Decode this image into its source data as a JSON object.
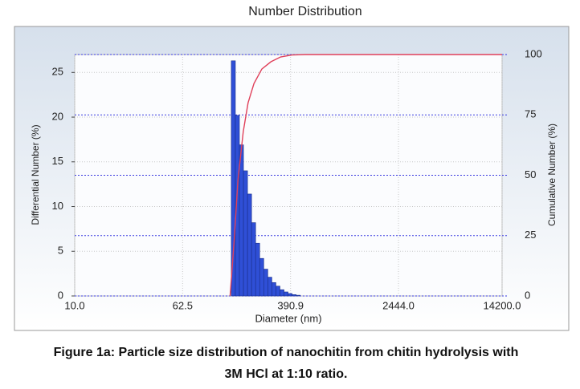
{
  "chart_data": {
    "type": "histogram",
    "title": "Number Distribution",
    "xlabel": "Diameter (nm)",
    "ylabel": "Differential Number (%)",
    "y2label": "Cumulative Number (%)",
    "xlog": true,
    "xlim": [
      10,
      14200
    ],
    "xticks": [
      {
        "value": 10,
        "label": "10.0"
      },
      {
        "value": 62.5,
        "label": "62.5"
      },
      {
        "value": 390.9,
        "label": "390.9"
      },
      {
        "value": 2444,
        "label": "2444.0"
      },
      {
        "value": 14200,
        "label": "14200.0"
      }
    ],
    "ylim": [
      0,
      27
    ],
    "yticks": [
      0,
      5,
      10,
      15,
      20,
      25
    ],
    "y2lim": [
      0,
      100
    ],
    "y2ticks": [
      0,
      25,
      50,
      75,
      100
    ],
    "grid": true,
    "color": "#2f4fd6",
    "bins": [
      142.9,
      153.1,
      164.0,
      175.7,
      188.2,
      201.6,
      216.0,
      231.4,
      247.9,
      265.6,
      284.5,
      304.8,
      326.5,
      349.8,
      374.7,
      401.4,
      430.1,
      460.7
    ],
    "values": [
      26.3,
      20.2,
      16.9,
      14,
      11.4,
      8.2,
      5.9,
      4.2,
      3,
      2.1,
      1.5,
      1.1,
      0.7,
      0.45,
      0.27,
      0.15,
      0.08
    ],
    "cumulative": {
      "type": "line",
      "axis": "y2",
      "color": "#e0405a",
      "x": [
        140,
        150,
        160,
        175,
        190,
        210,
        240,
        280,
        330,
        400,
        500,
        14200
      ],
      "values": [
        0,
        23,
        48,
        68,
        80,
        88,
        94,
        97,
        99,
        99.8,
        100,
        100
      ]
    },
    "caption": [
      "Figure 1a: Particle size distribution of nanochitin from chitin hydrolysis with",
      "3M HCl at 1:10 ratio."
    ]
  }
}
